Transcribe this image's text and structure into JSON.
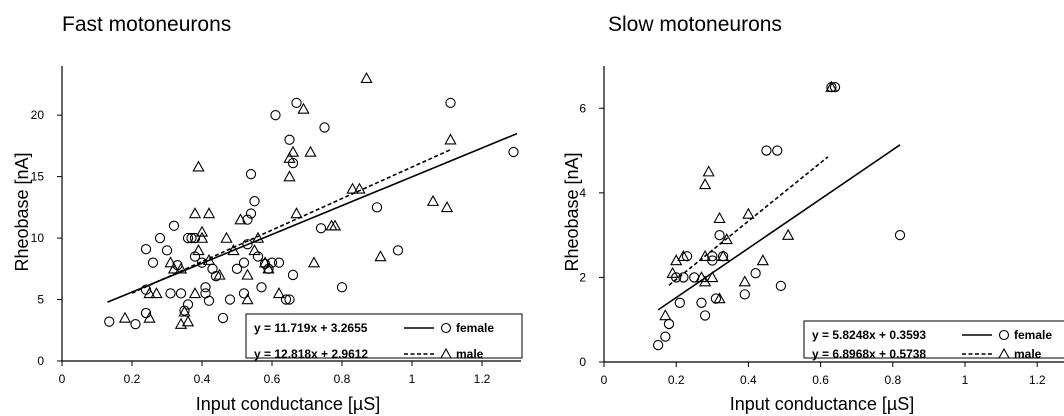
{
  "chart_data": [
    {
      "type": "scatter",
      "title": "Fast motoneurons",
      "xlabel": "Input conductance [µS]",
      "ylabel": "Rheobase [nA]",
      "xlim": [
        0,
        1.3
      ],
      "ylim": [
        0,
        24
      ],
      "xticks": [
        "0",
        "0.2",
        "0.4",
        "0.6",
        "0.8",
        "1",
        "1.2"
      ],
      "xtick_values": [
        0,
        0.2,
        0.4,
        0.6,
        0.8,
        1.0,
        1.2
      ],
      "yticks": [
        "0",
        "5",
        "10",
        "15",
        "20"
      ],
      "ytick_values": [
        0,
        5,
        10,
        15,
        20
      ],
      "legend_position": "bottom-right",
      "series": [
        {
          "name": "female",
          "marker": "circle",
          "fit_equation": "y = 11.719x + 3.2655",
          "fit_style": "solid",
          "fit_slope": 11.719,
          "fit_intercept": 3.2655,
          "fit_range": [
            0.13,
            1.3
          ],
          "points": [
            [
              0.135,
              3.2
            ],
            [
              0.21,
              3.0
            ],
            [
              0.24,
              3.9
            ],
            [
              0.24,
              5.8
            ],
            [
              0.24,
              9.1
            ],
            [
              0.26,
              8.0
            ],
            [
              0.28,
              10.0
            ],
            [
              0.3,
              9.0
            ],
            [
              0.31,
              5.5
            ],
            [
              0.32,
              11.0
            ],
            [
              0.33,
              7.8
            ],
            [
              0.34,
              5.5
            ],
            [
              0.35,
              4.1
            ],
            [
              0.36,
              4.6
            ],
            [
              0.36,
              10.0
            ],
            [
              0.37,
              10.0
            ],
            [
              0.38,
              10.0
            ],
            [
              0.38,
              8.5
            ],
            [
              0.4,
              8.0
            ],
            [
              0.41,
              6.0
            ],
            [
              0.41,
              5.5
            ],
            [
              0.42,
              4.9
            ],
            [
              0.43,
              7.5
            ],
            [
              0.44,
              6.9
            ],
            [
              0.46,
              3.5
            ],
            [
              0.48,
              5.0
            ],
            [
              0.5,
              7.5
            ],
            [
              0.52,
              8.0
            ],
            [
              0.52,
              5.5
            ],
            [
              0.53,
              9.5
            ],
            [
              0.53,
              11.5
            ],
            [
              0.54,
              12.0
            ],
            [
              0.54,
              15.2
            ],
            [
              0.55,
              13.0
            ],
            [
              0.56,
              8.5
            ],
            [
              0.57,
              6.0
            ],
            [
              0.58,
              7.9
            ],
            [
              0.59,
              7.5
            ],
            [
              0.6,
              8.0
            ],
            [
              0.61,
              20.0
            ],
            [
              0.62,
              8.0
            ],
            [
              0.64,
              5.0
            ],
            [
              0.65,
              18.0
            ],
            [
              0.65,
              5.0
            ],
            [
              0.66,
              7.0
            ],
            [
              0.66,
              16.1
            ],
            [
              0.67,
              21.0
            ],
            [
              0.75,
              19.0
            ],
            [
              0.74,
              10.8
            ],
            [
              0.8,
              6.0
            ],
            [
              0.9,
              12.5
            ],
            [
              0.96,
              9.0
            ],
            [
              1.11,
              21.0
            ],
            [
              1.29,
              17.0
            ]
          ]
        },
        {
          "name": "male",
          "marker": "triangle",
          "fit_equation": "y = 12.818x + 2.9612",
          "fit_style": "dashed",
          "fit_slope": 12.818,
          "fit_intercept": 2.9612,
          "fit_range": [
            0.2,
            1.11
          ],
          "points": [
            [
              0.18,
              3.5
            ],
            [
              0.25,
              3.5
            ],
            [
              0.25,
              5.5
            ],
            [
              0.27,
              5.5
            ],
            [
              0.31,
              8.0
            ],
            [
              0.32,
              7.5
            ],
            [
              0.34,
              3.0
            ],
            [
              0.34,
              7.5
            ],
            [
              0.35,
              4.0
            ],
            [
              0.36,
              3.2
            ],
            [
              0.38,
              5.5
            ],
            [
              0.38,
              12.0
            ],
            [
              0.39,
              15.8
            ],
            [
              0.39,
              9.0
            ],
            [
              0.4,
              10.0
            ],
            [
              0.4,
              10.5
            ],
            [
              0.42,
              12.0
            ],
            [
              0.42,
              8.2
            ],
            [
              0.45,
              7.0
            ],
            [
              0.47,
              10.0
            ],
            [
              0.49,
              9.0
            ],
            [
              0.51,
              11.5
            ],
            [
              0.53,
              7.0
            ],
            [
              0.53,
              5.0
            ],
            [
              0.55,
              9.0
            ],
            [
              0.56,
              10.0
            ],
            [
              0.58,
              8.0
            ],
            [
              0.59,
              7.5
            ],
            [
              0.62,
              5.5
            ],
            [
              0.65,
              15.0
            ],
            [
              0.65,
              16.5
            ],
            [
              0.66,
              17.0
            ],
            [
              0.67,
              12.0
            ],
            [
              0.69,
              20.5
            ],
            [
              0.71,
              17.0
            ],
            [
              0.72,
              8.0
            ],
            [
              0.77,
              11.0
            ],
            [
              0.78,
              11.0
            ],
            [
              0.83,
              14.0
            ],
            [
              0.85,
              14.0
            ],
            [
              0.87,
              23.0
            ],
            [
              0.91,
              8.5
            ],
            [
              1.06,
              13.0
            ],
            [
              1.1,
              12.5
            ],
            [
              1.11,
              18.0
            ]
          ]
        }
      ],
      "legend_items": [
        {
          "equation": "y = 11.719x + 3.2655",
          "series": "female"
        },
        {
          "equation": "y = 12.818x + 2.9612",
          "series": "male"
        }
      ]
    },
    {
      "type": "scatter",
      "title": "Slow motoneurons",
      "xlabel": "Input conductance [µS]",
      "ylabel": "Rheobase [nA]",
      "xlim": [
        0,
        1.3
      ],
      "ylim": [
        0,
        7
      ],
      "xticks": [
        "0",
        "0.2",
        "0.4",
        "0.6",
        "0.8",
        "1",
        "1.2"
      ],
      "xtick_values": [
        0,
        0.2,
        0.4,
        0.6,
        0.8,
        1.0,
        1.2
      ],
      "yticks": [
        "0",
        "2",
        "4",
        "6"
      ],
      "ytick_values": [
        0,
        2,
        4,
        6
      ],
      "legend_position": "bottom-right",
      "series": [
        {
          "name": "female",
          "marker": "circle",
          "fit_equation": "y = 5.8248x + 0.3593",
          "fit_style": "solid",
          "fit_slope": 5.8248,
          "fit_intercept": 0.3593,
          "fit_range": [
            0.15,
            0.82
          ],
          "points": [
            [
              0.15,
              0.4
            ],
            [
              0.17,
              0.6
            ],
            [
              0.18,
              0.9
            ],
            [
              0.2,
              2.0
            ],
            [
              0.21,
              1.4
            ],
            [
              0.22,
              2.0
            ],
            [
              0.23,
              2.5
            ],
            [
              0.25,
              2.0
            ],
            [
              0.27,
              1.4
            ],
            [
              0.28,
              1.1
            ],
            [
              0.3,
              2.4
            ],
            [
              0.3,
              2.5
            ],
            [
              0.31,
              1.5
            ],
            [
              0.32,
              3.0
            ],
            [
              0.33,
              2.5
            ],
            [
              0.39,
              1.6
            ],
            [
              0.42,
              2.1
            ],
            [
              0.45,
              5.0
            ],
            [
              0.48,
              5.0
            ],
            [
              0.49,
              1.8
            ],
            [
              0.63,
              6.5
            ],
            [
              0.64,
              6.5
            ],
            [
              0.82,
              3.0
            ]
          ]
        },
        {
          "name": "male",
          "marker": "triangle",
          "fit_equation": "y = 6.8968x + 0.5738",
          "fit_style": "dashed",
          "fit_slope": 6.8968,
          "fit_intercept": 0.5738,
          "fit_range": [
            0.18,
            0.62
          ],
          "points": [
            [
              0.17,
              1.1
            ],
            [
              0.19,
              2.1
            ],
            [
              0.2,
              2.4
            ],
            [
              0.22,
              2.5
            ],
            [
              0.27,
              2.0
            ],
            [
              0.28,
              2.5
            ],
            [
              0.28,
              4.2
            ],
            [
              0.28,
              1.9
            ],
            [
              0.29,
              4.5
            ],
            [
              0.3,
              2.0
            ],
            [
              0.32,
              1.5
            ],
            [
              0.32,
              3.4
            ],
            [
              0.33,
              2.5
            ],
            [
              0.34,
              2.9
            ],
            [
              0.39,
              1.9
            ],
            [
              0.4,
              3.5
            ],
            [
              0.44,
              2.4
            ],
            [
              0.51,
              3.0
            ],
            [
              0.63,
              6.5
            ]
          ]
        }
      ],
      "legend_items": [
        {
          "equation": "y = 5.8248x + 0.3593",
          "series": "female"
        },
        {
          "equation": "y = 6.8968x + 0.5738",
          "series": "male"
        }
      ]
    }
  ]
}
